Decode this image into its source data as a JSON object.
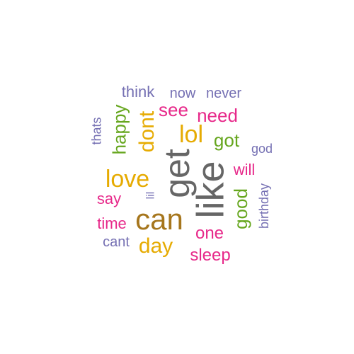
{
  "colors": {
    "purple": "#7570b3",
    "pink": "#e7298a",
    "gold": "#e6ab02",
    "green": "#66a61e",
    "gray": "#666666",
    "brown": "#a6761d"
  },
  "words": [
    {
      "text": "like",
      "color": "#666666",
      "weight": 1.0,
      "rotated": true
    },
    {
      "text": "get",
      "color": "#666666",
      "weight": 0.92,
      "rotated": true
    },
    {
      "text": "can",
      "color": "#a6761d",
      "weight": 0.78,
      "rotated": false
    },
    {
      "text": "love",
      "color": "#e6ab02",
      "weight": 0.6,
      "rotated": false
    },
    {
      "text": "lol",
      "color": "#e6ab02",
      "weight": 0.58,
      "rotated": false
    },
    {
      "text": "dont",
      "color": "#e6ab02",
      "weight": 0.55,
      "rotated": true
    },
    {
      "text": "day",
      "color": "#e6ab02",
      "weight": 0.5,
      "rotated": false
    },
    {
      "text": "good",
      "color": "#66a61e",
      "weight": 0.46,
      "rotated": true
    },
    {
      "text": "happy",
      "color": "#66a61e",
      "weight": 0.42,
      "rotated": true
    },
    {
      "text": "got",
      "color": "#66a61e",
      "weight": 0.4,
      "rotated": false
    },
    {
      "text": "need",
      "color": "#e7298a",
      "weight": 0.4,
      "rotated": false
    },
    {
      "text": "see",
      "color": "#e7298a",
      "weight": 0.38,
      "rotated": false
    },
    {
      "text": "one",
      "color": "#e7298a",
      "weight": 0.38,
      "rotated": false
    },
    {
      "text": "sleep",
      "color": "#e7298a",
      "weight": 0.36,
      "rotated": false
    },
    {
      "text": "time",
      "color": "#e7298a",
      "weight": 0.32,
      "rotated": false
    },
    {
      "text": "say",
      "color": "#e7298a",
      "weight": 0.32,
      "rotated": false
    },
    {
      "text": "will",
      "color": "#e7298a",
      "weight": 0.3,
      "rotated": false
    },
    {
      "text": "think",
      "color": "#7570b3",
      "weight": 0.32,
      "rotated": false
    },
    {
      "text": "now",
      "color": "#7570b3",
      "weight": 0.3,
      "rotated": false
    },
    {
      "text": "never",
      "color": "#7570b3",
      "weight": 0.3,
      "rotated": false
    },
    {
      "text": "cant",
      "color": "#7570b3",
      "weight": 0.3,
      "rotated": false
    },
    {
      "text": "birthday",
      "color": "#7570b3",
      "weight": 0.26,
      "rotated": true
    },
    {
      "text": "thats",
      "color": "#7570b3",
      "weight": 0.24,
      "rotated": true
    },
    {
      "text": "god",
      "color": "#7570b3",
      "weight": 0.26,
      "rotated": false
    },
    {
      "text": "lil",
      "color": "#7570b3",
      "weight": 0.22,
      "rotated": true
    }
  ]
}
